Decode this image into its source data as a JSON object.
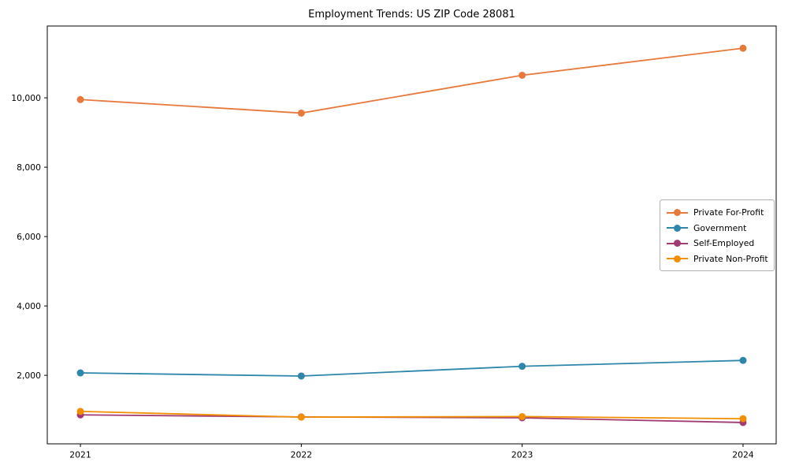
{
  "title": "Employment Trends: US ZIP Code 28081",
  "chart_data": {
    "type": "line",
    "title": "Employment Trends: US ZIP Code 28081",
    "x": [
      2021,
      2022,
      2023,
      2024
    ],
    "x_tick_labels": [
      "2021",
      "2022",
      "2023",
      "2024"
    ],
    "y_ticks": [
      2000,
      4000,
      6000,
      8000,
      10000
    ],
    "y_tick_labels": [
      "2,000",
      "4,000",
      "6,000",
      "8,000",
      "10,000"
    ],
    "xlim": [
      2020.85,
      2024.15
    ],
    "ylim": [
      25,
      12070
    ],
    "grid": false,
    "legend_position": "center right",
    "series": [
      {
        "name": "Private For-Profit",
        "color": "#E8793D",
        "values": [
          9950,
          9560,
          10650,
          11430
        ]
      },
      {
        "name": "Government",
        "color": "#2E86AB",
        "values": [
          2070,
          1980,
          2260,
          2430
        ]
      },
      {
        "name": "Self-Employed",
        "color": "#A23B72",
        "values": [
          860,
          800,
          775,
          640
        ]
      },
      {
        "name": "Private Non-Profit",
        "color": "#F18F01",
        "values": [
          960,
          795,
          810,
          750
        ]
      }
    ]
  }
}
